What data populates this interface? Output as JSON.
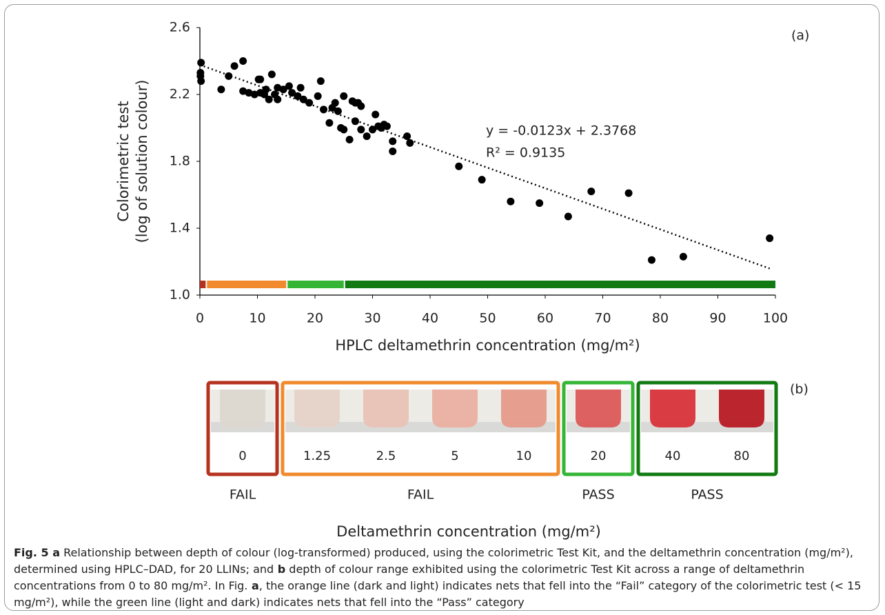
{
  "chart_data": {
    "type": "scatter",
    "panel_label": "(a)",
    "y_label": [
      "Colorimetric test",
      "(log of solution colour)"
    ],
    "x_label": "HPLC deltamethrin concentration (mg/m²)",
    "color": "#000000",
    "x": [
      0.2,
      0.1,
      0.1,
      0.2,
      3.7,
      5,
      6,
      7.5,
      7.5,
      8.5,
      9.5,
      10.2,
      10.5,
      10.5,
      11.2,
      11.5,
      12,
      12.5,
      13,
      13.5,
      13.5,
      14.5,
      15.5,
      16,
      17,
      17.5,
      18,
      19,
      20.5,
      21,
      21.5,
      22.5,
      23,
      23.5,
      24,
      24.5,
      25,
      25,
      26,
      26.5,
      27,
      27,
      27.5,
      28,
      28,
      29,
      30,
      30.5,
      31,
      31.5,
      32,
      32.5,
      33.5,
      33.5,
      36,
      36.5,
      45,
      49,
      54,
      59,
      64,
      68,
      74.5,
      78.5,
      84,
      99
    ],
    "y": [
      2.39,
      2.33,
      2.31,
      2.28,
      2.23,
      2.31,
      2.37,
      2.4,
      2.22,
      2.21,
      2.2,
      2.29,
      2.21,
      2.29,
      2.2,
      2.23,
      2.17,
      2.32,
      2.2,
      2.17,
      2.24,
      2.23,
      2.25,
      2.21,
      2.19,
      2.24,
      2.17,
      2.15,
      2.19,
      2.28,
      2.11,
      2.03,
      2.12,
      2.15,
      2.1,
      2,
      1.99,
      2.19,
      1.93,
      2.16,
      2.15,
      2.04,
      2.15,
      2.13,
      1.99,
      1.95,
      1.99,
      2.08,
      2.01,
      2,
      2.02,
      2.01,
      1.92,
      1.86,
      1.95,
      1.91,
      1.77,
      1.69,
      1.56,
      1.55,
      1.47,
      1.62,
      1.61,
      1.21,
      1.23,
      1.34
    ],
    "xlim": [
      0,
      100
    ],
    "ylim": [
      1.0,
      2.6
    ],
    "xticks": [
      0,
      10,
      20,
      30,
      40,
      50,
      60,
      70,
      80,
      90,
      100
    ],
    "yticks": [
      {
        "value": 1.0,
        "label": "1.0"
      },
      1.4,
      1.8,
      2.2,
      2.6
    ],
    "trendline": {
      "equation": "y = -0.0123x + 2.3768",
      "r_squared": "R² = 0.9135",
      "slope": -0.0123,
      "intercept": 2.3768
    },
    "bands": [
      {
        "from": 0,
        "to": 1,
        "color": "#b5321f"
      },
      {
        "from": 1,
        "to": 15,
        "color": "#f08a2c"
      },
      {
        "from": 15,
        "to": 25,
        "color": "#35b535"
      },
      {
        "from": 25,
        "to": 100,
        "color": "#127a12"
      }
    ]
  },
  "panel_b": {
    "label": "(b)",
    "x_label": "Deltamethrin concentration (mg/m²)",
    "groups": [
      {
        "verdict": "FAIL",
        "color": "#b5321f",
        "concentrations": [
          0
        ],
        "vial_colors": [
          "#dcd8cf"
        ]
      },
      {
        "verdict": "FAIL",
        "color": "#f08a2c",
        "concentrations": [
          1.25,
          2.5,
          5,
          10
        ],
        "vial_colors": [
          "#e6d3c9",
          "#e9c2b6",
          "#ebb0a2",
          "#e69a8a"
        ]
      },
      {
        "verdict": "PASS",
        "color": "#35b535",
        "concentrations": [
          20
        ],
        "vial_colors": [
          "#dc5a58"
        ]
      },
      {
        "verdict": "PASS",
        "color": "#127a12",
        "concentrations": [
          40,
          80
        ],
        "vial_colors": [
          "#d8333a",
          "#b81a24"
        ]
      }
    ]
  },
  "caption": [
    {
      "text": "Fig. 5",
      "bold": true
    },
    {
      "text": " a",
      "bold": true
    },
    {
      "text": " Relationship between depth of colour (log-transformed) produced, using the colorimetric Test Kit, and the deltamethrin concentration (mg/m²), determined using HPLC–DAD, for 20 LLINs; and",
      "bold": false
    },
    {
      "text": " b",
      "bold": true
    },
    {
      "text": " depth of colour range exhibited using the colorimetric Test Kit across a range of deltamethrin concentrations from 0 to 80 mg/m². In Fig.",
      "bold": false
    },
    {
      "text": " a",
      "bold": true
    },
    {
      "text": ", the orange line (dark and light) indicates nets that fell into the “Fail” category of the colorimetric test (< 15 mg/m²), while the green line (light and dark) indicates nets that fell into the “Pass” category",
      "bold": false
    }
  ]
}
